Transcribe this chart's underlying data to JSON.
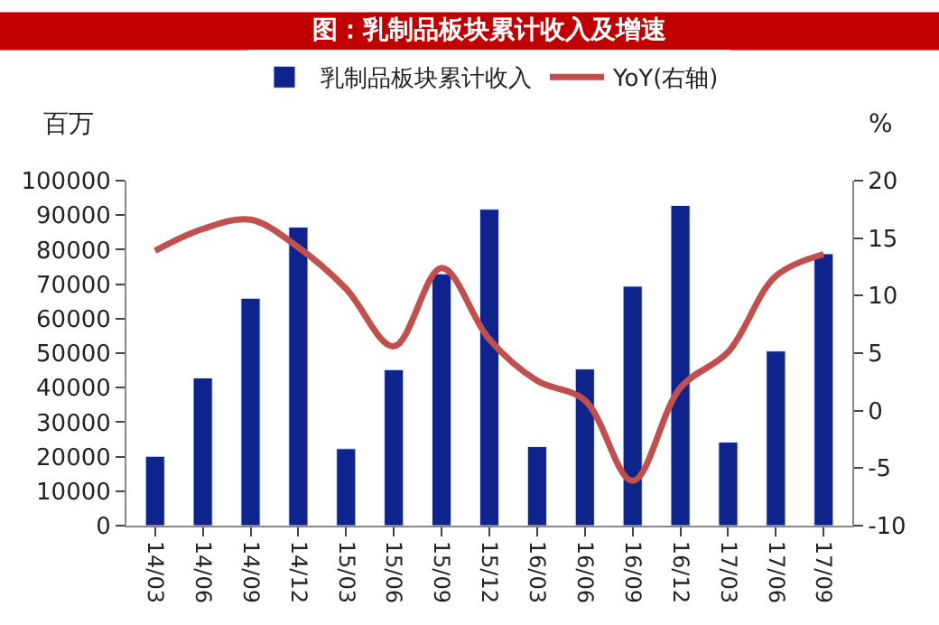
{
  "chart_data": {
    "type": "bar",
    "title": "图：乳制品板块累计收入及增速",
    "ylabel": "百万",
    "y2label": "%",
    "categories": [
      "14/03",
      "14/06",
      "14/09",
      "14/12",
      "15/03",
      "15/06",
      "15/09",
      "15/12",
      "16/03",
      "16/06",
      "16/09",
      "16/12",
      "17/03",
      "17/06",
      "17/09"
    ],
    "series": [
      {
        "name": "乳制品板块累计收入",
        "color": "#0f238c",
        "values": [
          20100,
          42800,
          65900,
          86500,
          22300,
          45200,
          73000,
          91700,
          22900,
          45400,
          69400,
          92800,
          24200,
          50600,
          78800
        ]
      },
      {
        "name": "YoY(右轴)",
        "type": "line",
        "axis": "y2",
        "color": "#c0504d",
        "values": [
          13.9,
          15.8,
          16.6,
          14.2,
          10.6,
          5.6,
          12.4,
          6.2,
          2.6,
          0.9,
          -6.1,
          2.0,
          5.1,
          11.7,
          13.6
        ]
      }
    ],
    "ylim": [
      0,
      100000
    ],
    "yticks": [
      0,
      10000,
      20000,
      30000,
      40000,
      50000,
      60000,
      70000,
      80000,
      90000,
      100000
    ],
    "y2lim": [
      -10,
      20
    ],
    "y2ticks": [
      -10,
      -5,
      0,
      5,
      10,
      15,
      20
    ],
    "legend": "top"
  }
}
